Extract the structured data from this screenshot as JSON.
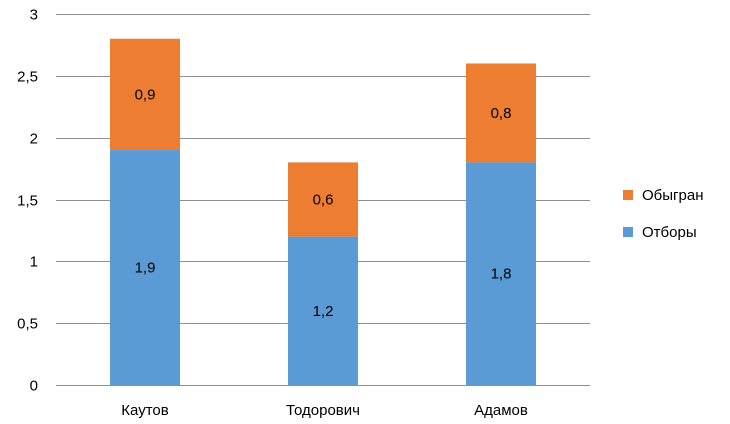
{
  "chart_data": {
    "type": "bar",
    "stacked": true,
    "categories": [
      "Каутов",
      "Тодорович",
      "Адамов"
    ],
    "series": [
      {
        "name": "Отборы",
        "values": [
          1.9,
          1.2,
          1.8
        ],
        "labels": [
          "1,9",
          "1,2",
          "1,8"
        ],
        "color": "#5b9bd5"
      },
      {
        "name": "Обыгран",
        "values": [
          0.9,
          0.6,
          0.8
        ],
        "labels": [
          "0,9",
          "0,6",
          "0,8"
        ],
        "color": "#ed7d31"
      }
    ],
    "ylim": [
      0,
      3
    ],
    "yticks": [
      0,
      0.5,
      1,
      1.5,
      2,
      2.5,
      3
    ],
    "ytick_labels": [
      "0",
      "0,5",
      "1",
      "1,5",
      "2",
      "2,5",
      "3"
    ],
    "grid": true,
    "legend": {
      "position": "right",
      "order": [
        "Обыгран",
        "Отборы"
      ]
    }
  }
}
